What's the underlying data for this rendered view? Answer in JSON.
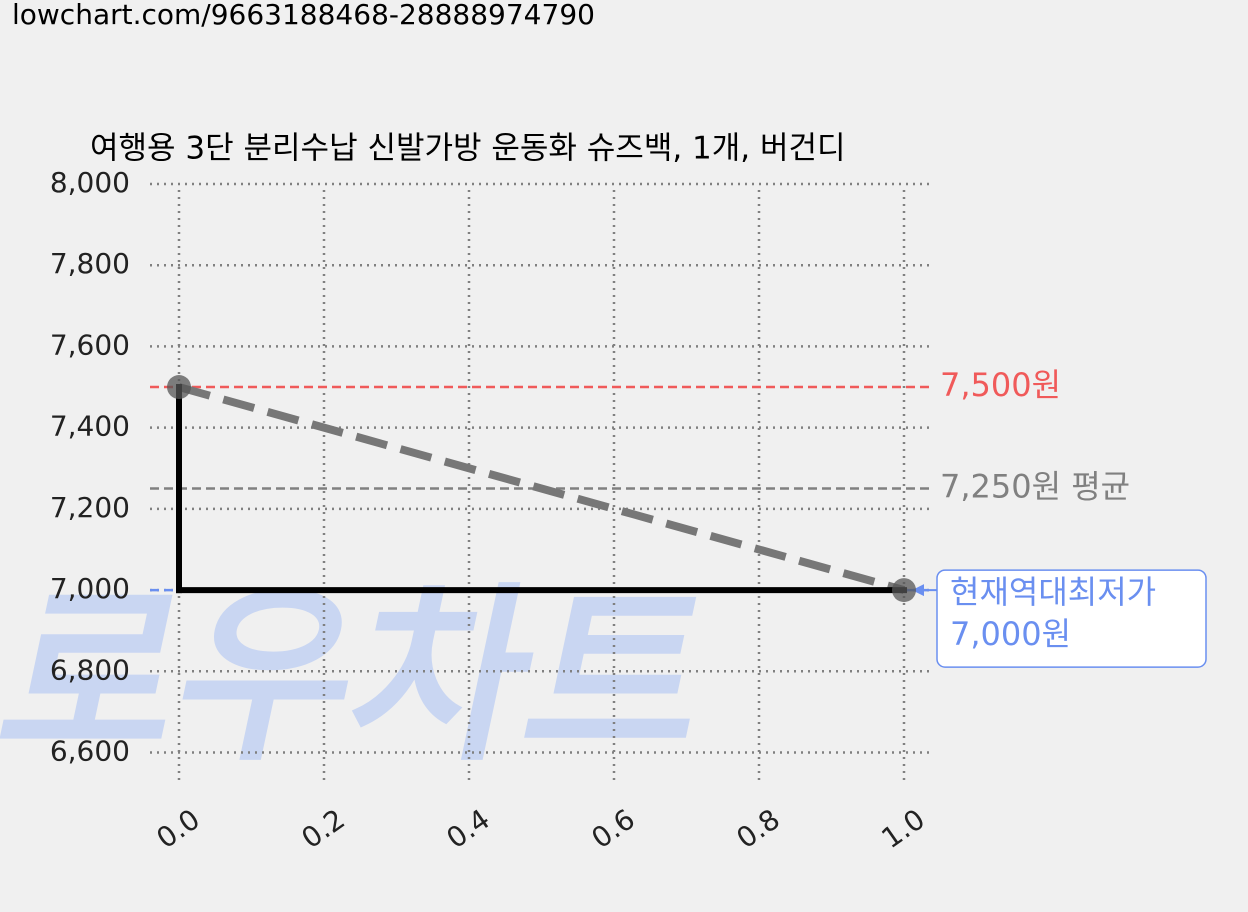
{
  "url": "lowchart.com/9663188468-28888974790",
  "watermark": "로우차트",
  "chart_data": {
    "type": "line",
    "title": "여행용 3단 분리수납 신발가방 운동화 슈즈백, 1개, 버건디",
    "x": [
      0,
      1
    ],
    "series": [
      {
        "color": "#000000",
        "values": [
          7500,
          7000
        ],
        "drawstyle": "steps-pre",
        "marker_color": "#555555"
      }
    ],
    "trend_color": "#777777",
    "xlim": [
      -0.04,
      1.04
    ],
    "ylim": [
      6520,
      8000
    ],
    "xticks": [
      {
        "value": 0,
        "label": "0.0"
      },
      {
        "value": 0.2,
        "label": "0.2"
      },
      {
        "value": 0.4,
        "label": "0.4"
      },
      {
        "value": 0.6,
        "label": "0.6"
      },
      {
        "value": 0.8,
        "label": "0.8"
      },
      {
        "value": 1,
        "label": "1.0"
      }
    ],
    "yticks": [
      {
        "value": 6600,
        "label": "6,600"
      },
      {
        "value": 6800,
        "label": "6,800"
      },
      {
        "value": 7000,
        "label": "7,000"
      },
      {
        "value": 7200,
        "label": "7,200"
      },
      {
        "value": 7400,
        "label": "7,400"
      },
      {
        "value": 7600,
        "label": "7,600"
      },
      {
        "value": 7800,
        "label": "7,800"
      },
      {
        "value": 8000,
        "label": "8,000"
      }
    ],
    "grid": true,
    "reference_lines": [
      {
        "value": 7500,
        "label": "7,500원",
        "color": "#f05a5a"
      },
      {
        "value": 7250,
        "label": "7,250원 평균",
        "color": "#808080"
      },
      {
        "value": 7000,
        "label": "7,000원",
        "note": "현재역대최저가",
        "color": "#6a8ff0"
      }
    ]
  }
}
